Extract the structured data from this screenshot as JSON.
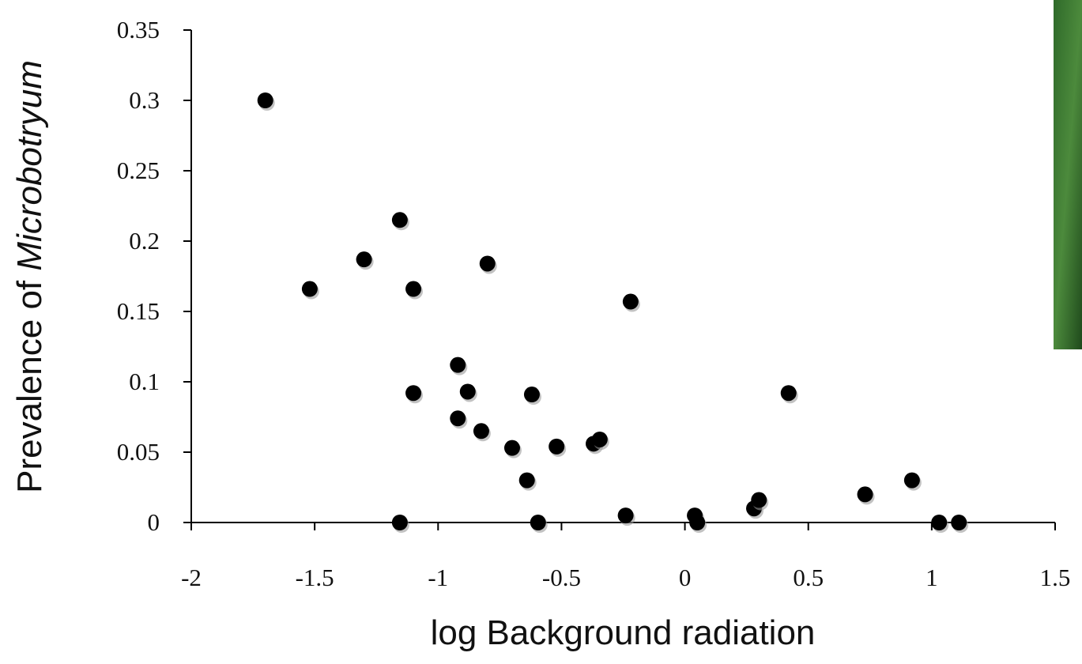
{
  "chart_data": {
    "type": "scatter",
    "x_label": "log Background radiation",
    "y_label": {
      "plain": "Prevalence of",
      "italic": "Microbotryum"
    },
    "color": "#000000",
    "x": [
      -1.7,
      -1.52,
      -1.3,
      -1.155,
      -1.1,
      -1.1,
      -1.155,
      -0.92,
      -0.92,
      -0.88,
      -0.825,
      -0.8,
      -0.7,
      -0.62,
      -0.64,
      -0.595,
      -0.52,
      -0.37,
      -0.345,
      -0.22,
      -0.24,
      0.04,
      0.05,
      0.28,
      0.3,
      0.42,
      0.73,
      0.92,
      1.03,
      1.11
    ],
    "values": [
      0.3,
      0.166,
      0.187,
      0.215,
      0.166,
      0.092,
      0,
      0.112,
      0.074,
      0.093,
      0.065,
      0.184,
      0.053,
      0.091,
      0.03,
      0,
      0.054,
      0.056,
      0.059,
      0.157,
      0.005,
      0.005,
      0,
      0.01,
      0.016,
      0.092,
      0.02,
      0.03,
      0,
      0
    ],
    "xlim": [
      -2,
      1.5
    ],
    "xticks": [
      -2,
      -1.5,
      -1,
      -0.5,
      0,
      0.5,
      1,
      1.5
    ],
    "ylim": [
      0,
      0.35
    ],
    "yticks": [
      0,
      0.05,
      0.1,
      0.15,
      0.2,
      0.25,
      0.3,
      0.35
    ]
  }
}
